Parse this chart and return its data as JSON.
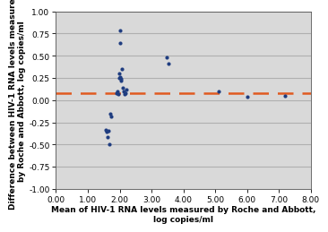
{
  "x_data": [
    1.55,
    1.6,
    1.62,
    1.65,
    1.68,
    1.7,
    1.72,
    1.9,
    1.92,
    1.95,
    1.97,
    1.98,
    2.0,
    2.0,
    2.02,
    2.03,
    2.05,
    2.08,
    2.1,
    2.12,
    2.15,
    2.18,
    2.2,
    3.48,
    3.52,
    5.1,
    6.0,
    7.2
  ],
  "y_data": [
    -0.335,
    -0.355,
    -0.42,
    -0.345,
    -0.5,
    -0.15,
    -0.18,
    0.08,
    0.1,
    0.07,
    0.25,
    0.3,
    0.78,
    0.64,
    0.26,
    0.22,
    0.24,
    0.35,
    0.14,
    0.1,
    0.07,
    0.08,
    0.12,
    0.48,
    0.41,
    0.1,
    0.04,
    0.05
  ],
  "dashed_line_y": 0.08,
  "xlim": [
    0.0,
    8.0
  ],
  "ylim": [
    -1.0,
    1.0
  ],
  "xticks": [
    0.0,
    1.0,
    2.0,
    3.0,
    4.0,
    5.0,
    6.0,
    7.0,
    8.0
  ],
  "yticks": [
    -1.0,
    -0.75,
    -0.5,
    -0.25,
    0.0,
    0.25,
    0.5,
    0.75,
    1.0
  ],
  "xlabel_line1": "Mean of HIV-1 RNA levels measured by Roche and Abbott,",
  "xlabel_line2": "log copies/ml",
  "ylabel_line1": "Difference between HIV-1 RNA levels measured",
  "ylabel_line2": "by Roche and Abbott, log copies/ml",
  "dot_color": "#1f3d80",
  "dash_color": "#e05a20",
  "bg_color": "#d9d9d9",
  "grid_color": "#b0b0b0",
  "tick_label_fontsize": 6.5,
  "axis_label_fontsize": 6.5
}
